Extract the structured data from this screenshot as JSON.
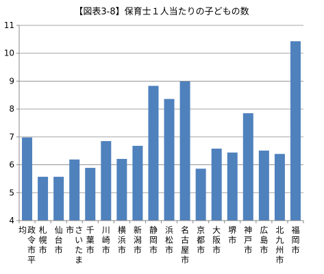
{
  "chart_data": {
    "type": "bar",
    "title": "【図表3-8】保育士１人当たりの子どもの数",
    "xlabel": "",
    "ylabel": "",
    "ylim": [
      4,
      11
    ],
    "yticks": [
      4,
      5,
      6,
      7,
      8,
      9,
      10,
      11
    ],
    "grid": true,
    "legend": "none",
    "bar_color": "#4F81BD",
    "categories": [
      "政令市平均",
      "札幌市",
      "仙台市",
      "さいたま市",
      "千葉市",
      "川崎市",
      "横浜市",
      "新潟市",
      "静岡市",
      "浜松市",
      "名古屋市",
      "京都市",
      "大阪市",
      "堺市",
      "神戸市",
      "広島市",
      "北九州市",
      "福岡市"
    ],
    "values": [
      6.98,
      5.57,
      5.57,
      6.19,
      5.89,
      6.85,
      6.21,
      6.68,
      8.83,
      8.36,
      8.99,
      5.86,
      6.58,
      6.44,
      7.85,
      6.51,
      6.39,
      10.43
    ]
  }
}
